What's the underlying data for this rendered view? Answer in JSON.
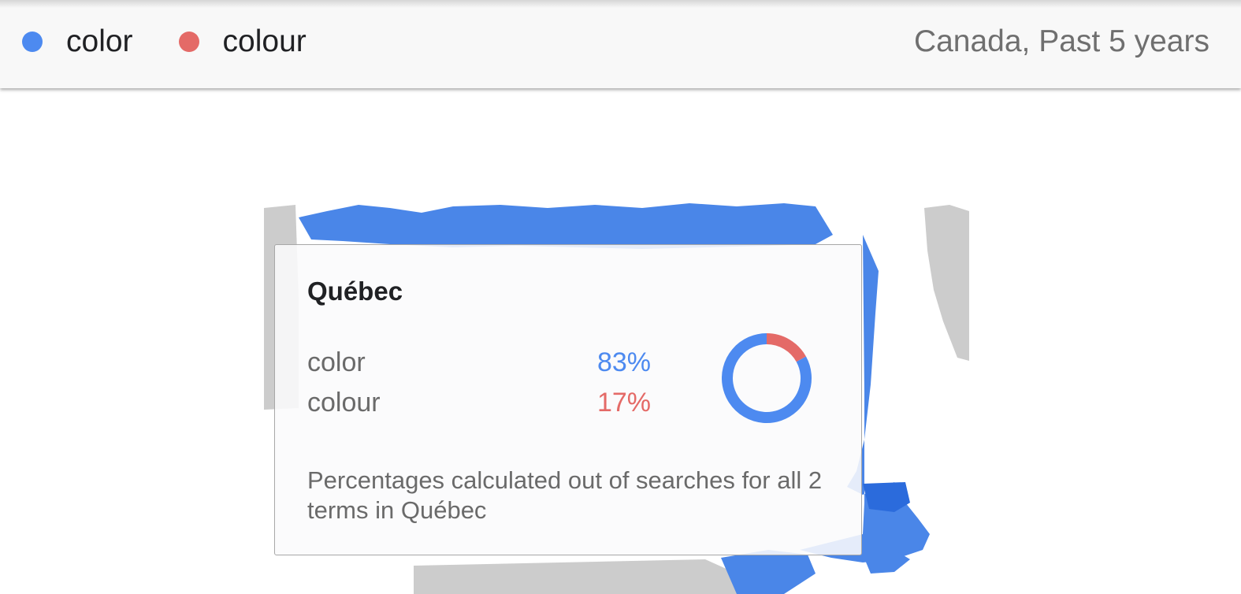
{
  "legend": {
    "items": [
      {
        "label": "color",
        "color": "#4d8af0"
      },
      {
        "label": "colour",
        "color": "#e46a67"
      }
    ]
  },
  "scope_label": "Canada, Past 5 years",
  "map": {
    "dominant_color": "#4a86e8",
    "dark_region_color": "#2b6bdc",
    "no_data_color": "#cccccc"
  },
  "tooltip": {
    "region": "Québec",
    "rows": [
      {
        "term": "color",
        "value": "83%",
        "color": "#4d8af0",
        "fraction": 0.83
      },
      {
        "term": "colour",
        "value": "17%",
        "color": "#e46a67",
        "fraction": 0.17
      }
    ],
    "note": "Percentages calculated out of searches for all 2 terms in Québec"
  }
}
